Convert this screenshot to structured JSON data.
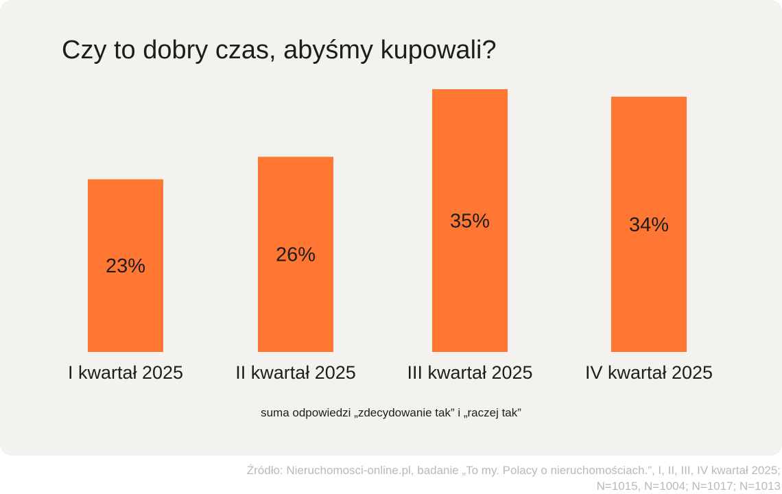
{
  "chart_data": {
    "type": "bar",
    "title": "Czy to dobry czas, abyśmy kupowali?",
    "categories": [
      "I kwartał 2025",
      "II kwartał 2025",
      "III kwartał 2025",
      "IV kwartał 2025"
    ],
    "values": [
      23,
      26,
      35,
      34
    ],
    "value_labels": [
      "23%",
      "26%",
      "35%",
      "34%"
    ],
    "xlabel": "",
    "ylabel": "",
    "ylim": [
      0,
      35
    ],
    "grid": false,
    "bar_color": "#ff7733"
  },
  "note": "suma odpowiedzi „zdecydowanie tak” i „raczej tak”",
  "source": {
    "line1": "Źródło: Nieruchomosci-online.pl, badanie „To my. Polacy o nieruchomościach.”, I, II, III, IV kwartał 2025;",
    "line2": "N=1015, N=1004; N=1017; N=1013"
  },
  "colors": {
    "background": "#f3f2ee",
    "bar": "#ff7733",
    "text": "#1d1d1b",
    "source_text": "#b9b9b9"
  }
}
